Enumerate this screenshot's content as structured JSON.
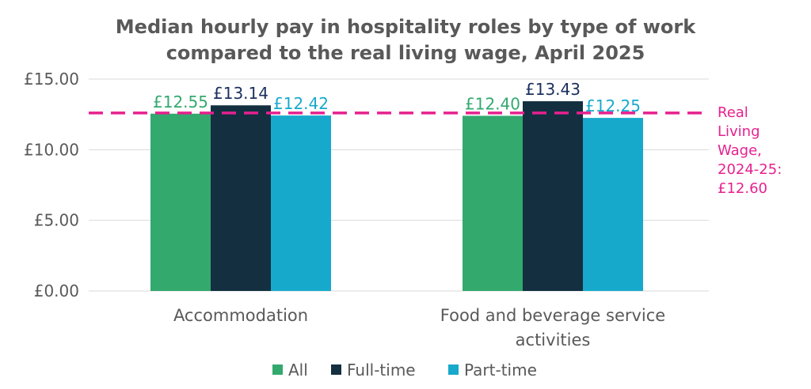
{
  "chart_data": {
    "type": "bar",
    "title": [
      "Median hourly pay in hospitality roles by type of work",
      "compared to the real living wage, April 2025"
    ],
    "categories": [
      [
        "Accommodation"
      ],
      [
        "Food and beverage service",
        "activities"
      ]
    ],
    "series": [
      {
        "name": "All",
        "color": "#33a96e",
        "label_color": "#33a96e",
        "values": [
          12.55,
          12.4
        ],
        "labels": [
          "£12.55",
          "£12.40"
        ]
      },
      {
        "name": "Full-time",
        "color": "#132f40",
        "label_color": "#1b2f5e",
        "values": [
          13.14,
          13.43
        ],
        "labels": [
          "£13.14",
          "£13.43"
        ]
      },
      {
        "name": "Part-time",
        "color": "#17a9cc",
        "label_color": "#17a9cc",
        "values": [
          12.42,
          12.25
        ],
        "labels": [
          "£12.42",
          "£12.25"
        ]
      }
    ],
    "ylim": [
      0,
      15
    ],
    "yticks": [
      0,
      5,
      10,
      15
    ],
    "ytick_labels": [
      "£0.00",
      "£5.00",
      "£10.00",
      "£15.00"
    ],
    "grid": true,
    "legend_position": "bottom",
    "reference_line": {
      "value": 12.6,
      "color": "#e6218f",
      "label": [
        "Real",
        "Living",
        "Wage,",
        "2024-25:",
        "£12.60"
      ]
    }
  }
}
